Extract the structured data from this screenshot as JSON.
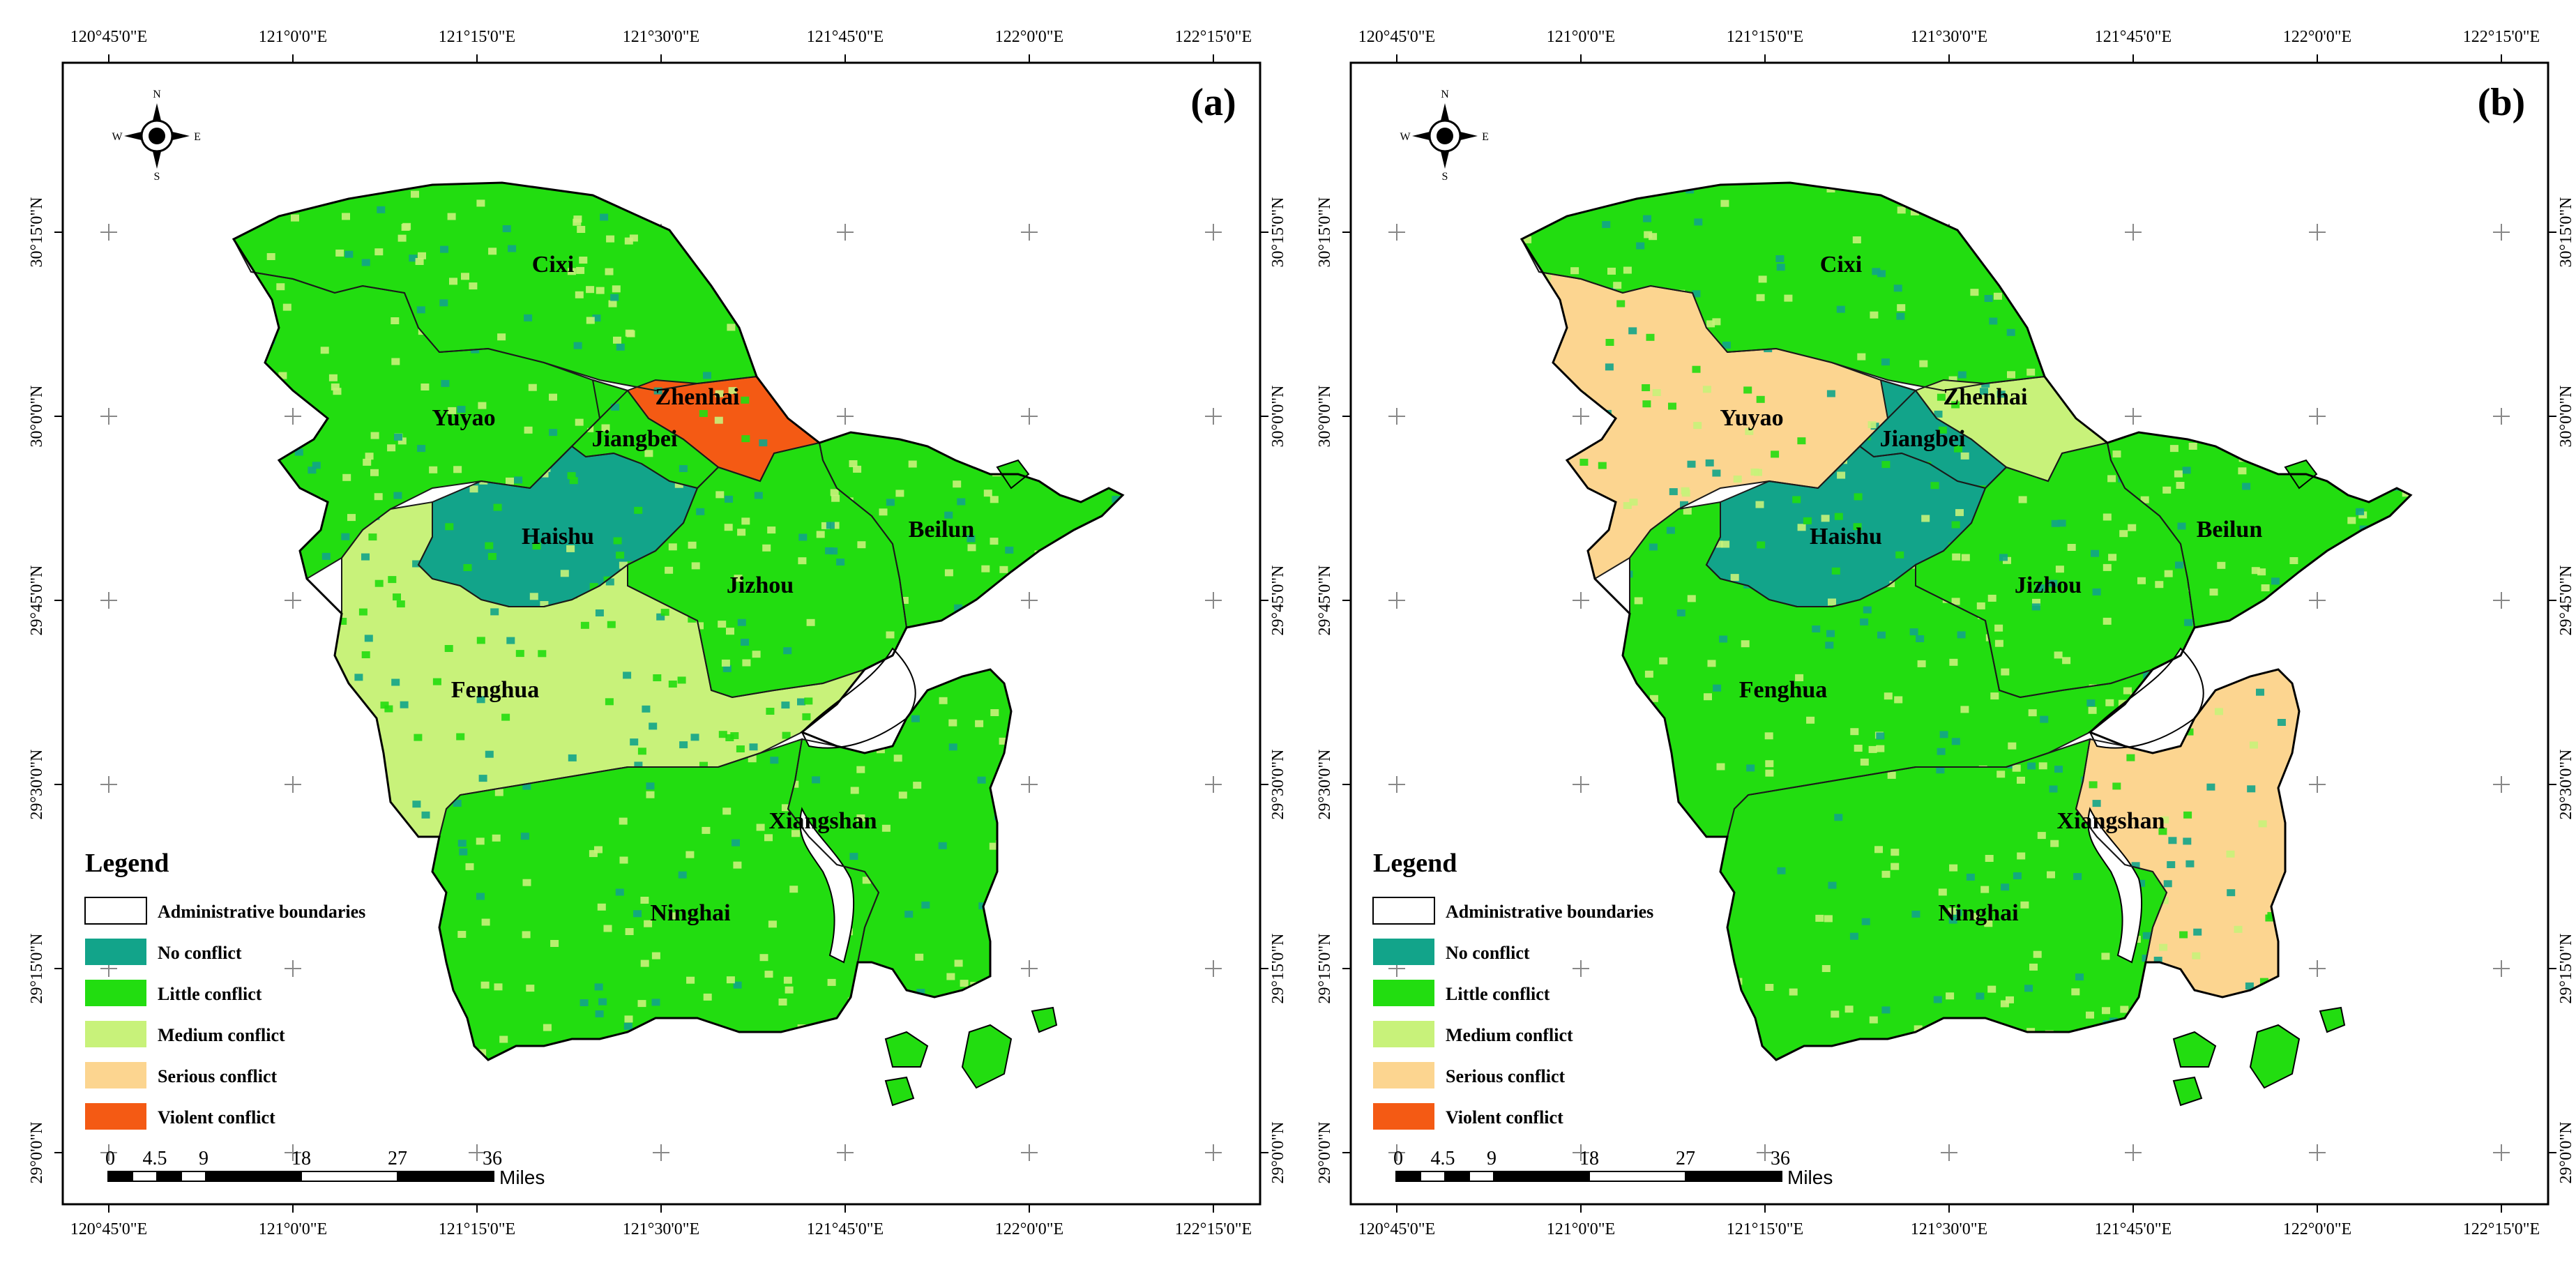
{
  "panels": [
    {
      "id": "a",
      "panel_label": "(a)",
      "districts": [
        {
          "name": "Cixi",
          "class": "Little conflict"
        },
        {
          "name": "Yuyao",
          "class": "Little conflict"
        },
        {
          "name": "Zhenhai",
          "class": "Violent conflict"
        },
        {
          "name": "Jiangbei",
          "class": "Little conflict"
        },
        {
          "name": "Haishu",
          "class": "No conflict"
        },
        {
          "name": "Jizhou",
          "class": "Little conflict"
        },
        {
          "name": "Beilun",
          "class": "Little conflict"
        },
        {
          "name": "Fenghua",
          "class": "Medium conflict"
        },
        {
          "name": "Ninghai",
          "class": "Little conflict"
        },
        {
          "name": "Xiangshan",
          "class": "Little conflict"
        }
      ]
    },
    {
      "id": "b",
      "panel_label": "(b)",
      "districts": [
        {
          "name": "Cixi",
          "class": "Little conflict"
        },
        {
          "name": "Yuyao",
          "class": "Serious conflict"
        },
        {
          "name": "Zhenhai",
          "class": "Medium conflict"
        },
        {
          "name": "Jiangbei",
          "class": "No conflict"
        },
        {
          "name": "Haishu",
          "class": "No conflict"
        },
        {
          "name": "Jizhou",
          "class": "Little conflict"
        },
        {
          "name": "Beilun",
          "class": "Little conflict"
        },
        {
          "name": "Fenghua",
          "class": "Little conflict"
        },
        {
          "name": "Ninghai",
          "class": "Little conflict"
        },
        {
          "name": "Xiangshan",
          "class": "Serious conflict"
        }
      ]
    }
  ],
  "lon_ticks": [
    "120°45'0\"E",
    "121°0'0\"E",
    "121°15'0\"E",
    "121°30'0\"E",
    "121°45'0\"E",
    "122°0'0\"E",
    "122°15'0\"E"
  ],
  "lat_ticks": [
    "30°15'0\"N",
    "30°0'0\"N",
    "29°45'0\"N",
    "29°30'0\"N",
    "29°15'0\"N",
    "29°0'0\"N"
  ],
  "compass": {
    "n": "N",
    "s": "S",
    "e": "E",
    "w": "W"
  },
  "legend": {
    "title": "Legend",
    "items": [
      {
        "label": "Administrative boundaries",
        "color": "#ffffff"
      },
      {
        "label": "No conflict",
        "color": "#12a48a"
      },
      {
        "label": "Little conflict",
        "color": "#22dd10"
      },
      {
        "label": "Medium conflict",
        "color": "#c8f27a"
      },
      {
        "label": "Serious conflict",
        "color": "#fcd590"
      },
      {
        "label": "Violent conflict",
        "color": "#f45a14"
      }
    ]
  },
  "scale_bar": {
    "ticks": [
      "0",
      "4.5",
      "9",
      "18",
      "27",
      "36"
    ],
    "unit": "Miles"
  }
}
